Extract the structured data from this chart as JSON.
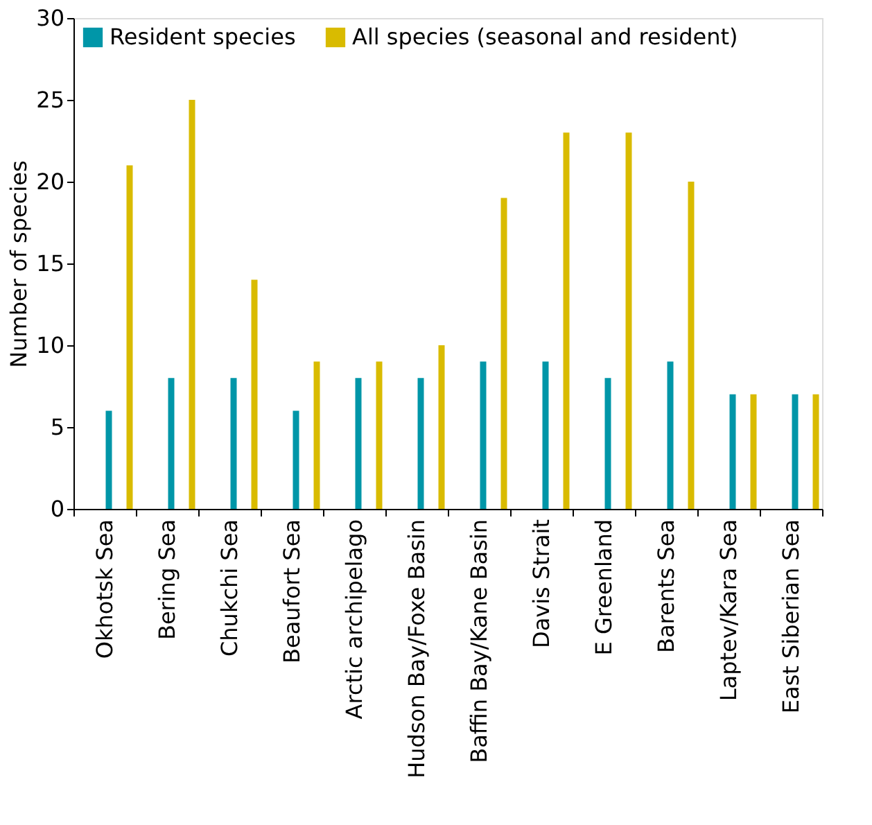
{
  "chart_data": {
    "type": "bar",
    "ylabel": "Number of  species",
    "categories": [
      "Okhotsk Sea",
      "Bering Sea",
      "Chukchi Sea",
      "Beaufort Sea",
      "Arctic archipelago",
      "Hudson Bay/Foxe Basin",
      "Baffin Bay/Kane Basin",
      "Davis Strait",
      "E Greenland",
      "Barents Sea",
      "Laptev/Kara Sea",
      "East Siberian Sea"
    ],
    "series": [
      {
        "name": "Resident species",
        "color": "#0096a8",
        "values": [
          6,
          8,
          8,
          6,
          8,
          8,
          9,
          9,
          8,
          9,
          7,
          7
        ]
      },
      {
        "name": "All species (seasonal and resident)",
        "color": "#d9bb00",
        "values": [
          21,
          25,
          14,
          9,
          9,
          10,
          19,
          23,
          23,
          20,
          7,
          7
        ]
      }
    ],
    "ylim": [
      0,
      30
    ],
    "yticks": [
      0,
      5,
      10,
      15,
      20,
      25,
      30
    ],
    "grid": false,
    "legend": "top left"
  }
}
